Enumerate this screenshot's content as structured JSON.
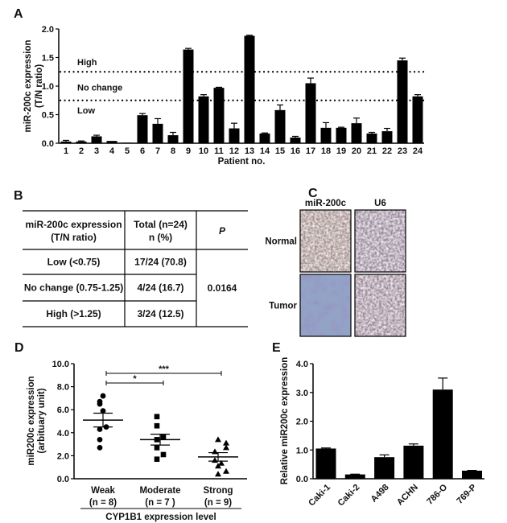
{
  "panel_labels": {
    "a": "A",
    "b": "B",
    "c": "C",
    "d": "D",
    "e": "E"
  },
  "chart_data": [
    {
      "panel": "A",
      "type": "bar",
      "xlabel": "Patient no.",
      "ylabel": [
        "miR-200c expression",
        "(T/N ratio)"
      ],
      "ylim": [
        0,
        2.0
      ],
      "yticks": [
        "0.0",
        "0.5",
        "1.0",
        "1.5",
        "2.0"
      ],
      "categories": [
        "1",
        "2",
        "3",
        "4",
        "5",
        "6",
        "7",
        "8",
        "9",
        "10",
        "11",
        "12",
        "13",
        "14",
        "15",
        "16",
        "17",
        "18",
        "19",
        "20",
        "21",
        "22",
        "23",
        "24"
      ],
      "values": [
        0.03,
        0.03,
        0.12,
        0.04,
        0.01,
        0.49,
        0.34,
        0.14,
        1.64,
        0.82,
        0.97,
        0.26,
        1.88,
        0.17,
        0.58,
        0.1,
        1.05,
        0.27,
        0.27,
        0.35,
        0.17,
        0.21,
        1.45,
        0.82
      ],
      "errors": [
        0.02,
        0.01,
        0.02,
        0.0,
        0.0,
        0.03,
        0.09,
        0.05,
        0.02,
        0.03,
        0.01,
        0.09,
        0.01,
        0.01,
        0.09,
        0.02,
        0.09,
        0.09,
        0.01,
        0.09,
        0.02,
        0.05,
        0.04,
        0.03
      ],
      "thresholds": [
        {
          "value": 1.25,
          "style": "dotted"
        },
        {
          "value": 0.75,
          "style": "dotted"
        }
      ],
      "region_labels": [
        {
          "text": "High",
          "value": 1.42
        },
        {
          "text": "No change",
          "value": 0.98
        },
        {
          "text": "Low",
          "value": 0.58
        }
      ],
      "bar_color": "#000000",
      "grid": false
    },
    {
      "panel": "D",
      "type": "scatter",
      "xlabel": "CYP1B1 expression level",
      "ylabel": [
        "miR200c expression",
        "(arbituary unit)"
      ],
      "ylim": [
        0,
        10.0
      ],
      "yticks": [
        "0.0",
        "2.0",
        "4.0",
        "6.0",
        "8.0",
        "10.0"
      ],
      "groups": [
        {
          "label": "Weak",
          "n_label": "(n = 8)",
          "marker": "circle",
          "values": [
            7.2,
            6.7,
            6.5,
            5.9,
            4.5,
            4.3,
            3.4,
            2.7
          ],
          "mean": 5.1,
          "sem": 0.6
        },
        {
          "label": "Moderate",
          "n_label": "(n = 7 )",
          "marker": "square",
          "values": [
            5.4,
            4.6,
            3.6,
            3.4,
            2.7,
            2.1,
            1.7
          ],
          "mean": 3.4,
          "sem": 0.47
        },
        {
          "label": "Strong",
          "n_label": "(n = 9)",
          "marker": "triangle",
          "values": [
            3.4,
            3.1,
            2.7,
            2.35,
            1.6,
            1.35,
            1.1,
            0.65,
            0.4
          ],
          "mean": 1.9,
          "sem": 0.37
        }
      ],
      "significance": [
        {
          "from": 0,
          "to": 2,
          "label": "***"
        },
        {
          "from": 0,
          "to": 1,
          "label": "*"
        }
      ],
      "grid": false
    },
    {
      "panel": "E",
      "type": "bar",
      "xlabel": "",
      "ylabel": "Relative miR200c expression",
      "ylim": [
        0,
        4.0
      ],
      "yticks": [
        "0.0",
        "1.0",
        "2.0",
        "3.0",
        "4.0"
      ],
      "categories": [
        "Caki-1",
        "Caki-2",
        "A498",
        "ACHN",
        "786-O",
        "769-P"
      ],
      "values": [
        1.05,
        0.15,
        0.75,
        1.15,
        3.1,
        0.28
      ],
      "errors": [
        0.02,
        0.01,
        0.08,
        0.06,
        0.4,
        0.01
      ],
      "bar_color": "#000000",
      "grid": false
    }
  ],
  "table_b": {
    "headers": [
      [
        "miR-200c  expression",
        "(T/N  ratio)"
      ],
      [
        "Total (n=24)",
        "n (%)"
      ],
      [
        "P"
      ]
    ],
    "rows": [
      {
        "category": "Low (<0.75)",
        "total": "17/24  (70.8)"
      },
      {
        "category": "No change (0.75-1.25)",
        "total": "4/24 (16.7)"
      },
      {
        "category": "High (>1.25)",
        "total": "3/24 (12.5)"
      }
    ],
    "p_value": "0.0164"
  },
  "panel_c": {
    "columns": [
      "miR-200c",
      "U6"
    ],
    "rows": [
      "Normal",
      "Tumor"
    ],
    "stain_colors": {
      "normal_mir": "#a8918f",
      "normal_u6": "#9d8aa0",
      "tumor_mir": "#93a3c6",
      "tumor_u6": "#a08a9c"
    }
  }
}
